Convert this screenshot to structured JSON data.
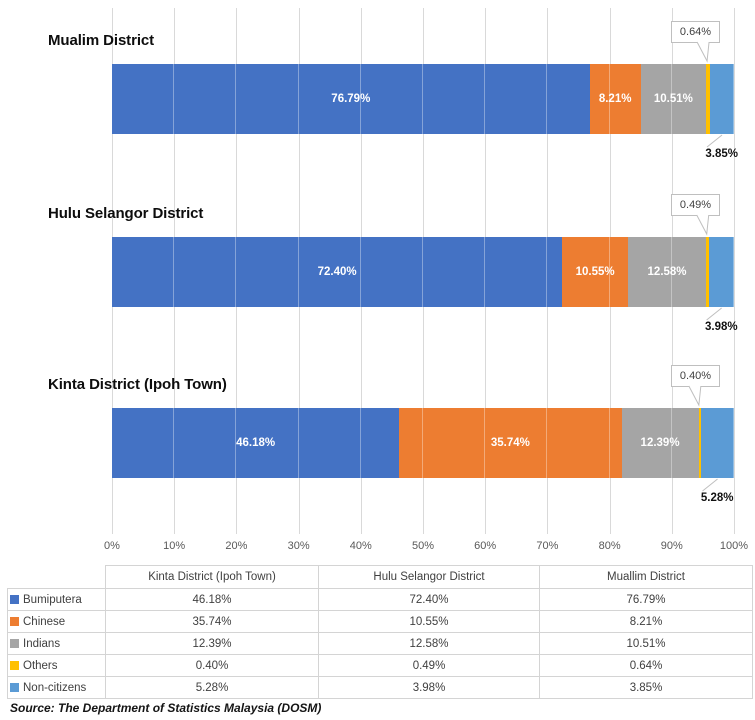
{
  "chart_data": {
    "type": "bar",
    "orientation": "horizontal",
    "stacked": true,
    "unit": "percent",
    "grid": true,
    "categories": [
      "Mualim District",
      "Hulu Selangor District",
      "Kinta District (Ipoh Town)"
    ],
    "series": [
      {
        "name": "Bumiputera",
        "color": "#4472C4",
        "values": [
          76.79,
          72.4,
          46.18
        ],
        "label_position": "inside"
      },
      {
        "name": "Chinese",
        "color": "#ED7D31",
        "values": [
          8.21,
          10.55,
          35.74
        ],
        "label_position": "inside"
      },
      {
        "name": "Indians",
        "color": "#A5A5A5",
        "values": [
          10.51,
          12.58,
          12.39
        ],
        "label_position": "inside"
      },
      {
        "name": "Others",
        "color": "#FFC000",
        "values": [
          0.64,
          0.49,
          0.4
        ],
        "label_position": "callout-above"
      },
      {
        "name": "Non-citizens",
        "color": "#5B9BD5",
        "values": [
          3.85,
          3.98,
          5.28
        ],
        "label_position": "below"
      }
    ],
    "x_axis": {
      "range": [
        0,
        100
      ],
      "tick_labels": [
        "0%",
        "10%",
        "20%",
        "30%",
        "40%",
        "50%",
        "60%",
        "70%",
        "80%",
        "90%",
        "100%"
      ]
    },
    "value_label_format": "0.00%"
  },
  "table": {
    "column_headers": [
      "Kinta District (Ipoh Town)",
      "Hulu Selangor District",
      "Muallim District"
    ],
    "rows": [
      {
        "legend": "Bumiputera",
        "color": "#4472C4",
        "values": [
          "46.18%",
          "72.40%",
          "76.79%"
        ]
      },
      {
        "legend": "Chinese",
        "color": "#ED7D31",
        "values": [
          "35.74%",
          "10.55%",
          "8.21%"
        ]
      },
      {
        "legend": "Indians",
        "color": "#A5A5A5",
        "values": [
          "12.39%",
          "12.58%",
          "10.51%"
        ]
      },
      {
        "legend": "Others",
        "color": "#FFC000",
        "values": [
          "0.40%",
          "0.49%",
          "0.64%"
        ]
      },
      {
        "legend": "Non-citizens",
        "color": "#5B9BD5",
        "values": [
          "5.28%",
          "3.98%",
          "3.85%"
        ]
      }
    ]
  },
  "colors": {
    "gridline": "#D9D9D9",
    "axis_text": "#595959",
    "callout_border": "#BFBFBF",
    "leader_line": "#BFBFBF"
  },
  "source_note": "Source: The Department of Statistics Malaysia (DOSM)"
}
